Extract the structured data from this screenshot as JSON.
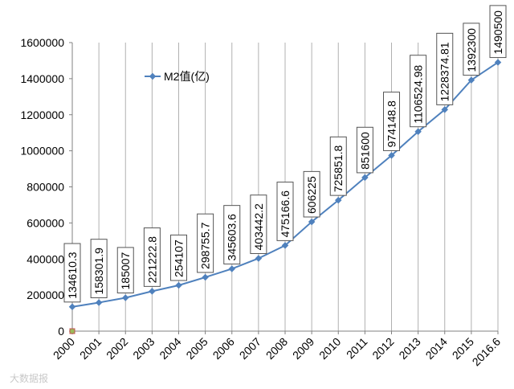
{
  "chart_data": {
    "type": "line",
    "title": "",
    "xlabel": "",
    "ylabel": "",
    "categories": [
      "2000",
      "2001",
      "2002",
      "2003",
      "2004",
      "2005",
      "2006",
      "2007",
      "2008",
      "2009",
      "2010",
      "2011",
      "2012",
      "2013",
      "2014",
      "2015",
      "2016.6"
    ],
    "series": [
      {
        "name": "M2值(亿)",
        "values": [
          134610.3,
          158301.9,
          185007,
          221222.8,
          254107,
          298755.7,
          345603.6,
          403442.2,
          475166.6,
          606225,
          725851.8,
          851600,
          974148.8,
          1106524.98,
          1228374.81,
          1392300,
          1490500
        ],
        "labels": [
          "134610.3",
          "158301.9",
          "185007",
          "221222.8",
          "254107",
          "298755.7",
          "345603.6",
          "403442.2",
          "475166.6",
          "606225",
          "725851.8",
          "851600",
          "974148.8",
          "1106524.98",
          "1228374.81",
          "1392300",
          "1490500"
        ]
      }
    ],
    "ylim": [
      0,
      1600000
    ],
    "yticks": [
      "0",
      "200000",
      "400000",
      "600000",
      "800000",
      "1000000",
      "1200000",
      "1400000",
      "1600000"
    ],
    "grid": "vertical",
    "legend": "top-left-inside",
    "series_color": "#4f81bd"
  },
  "watermark": "大数据报"
}
